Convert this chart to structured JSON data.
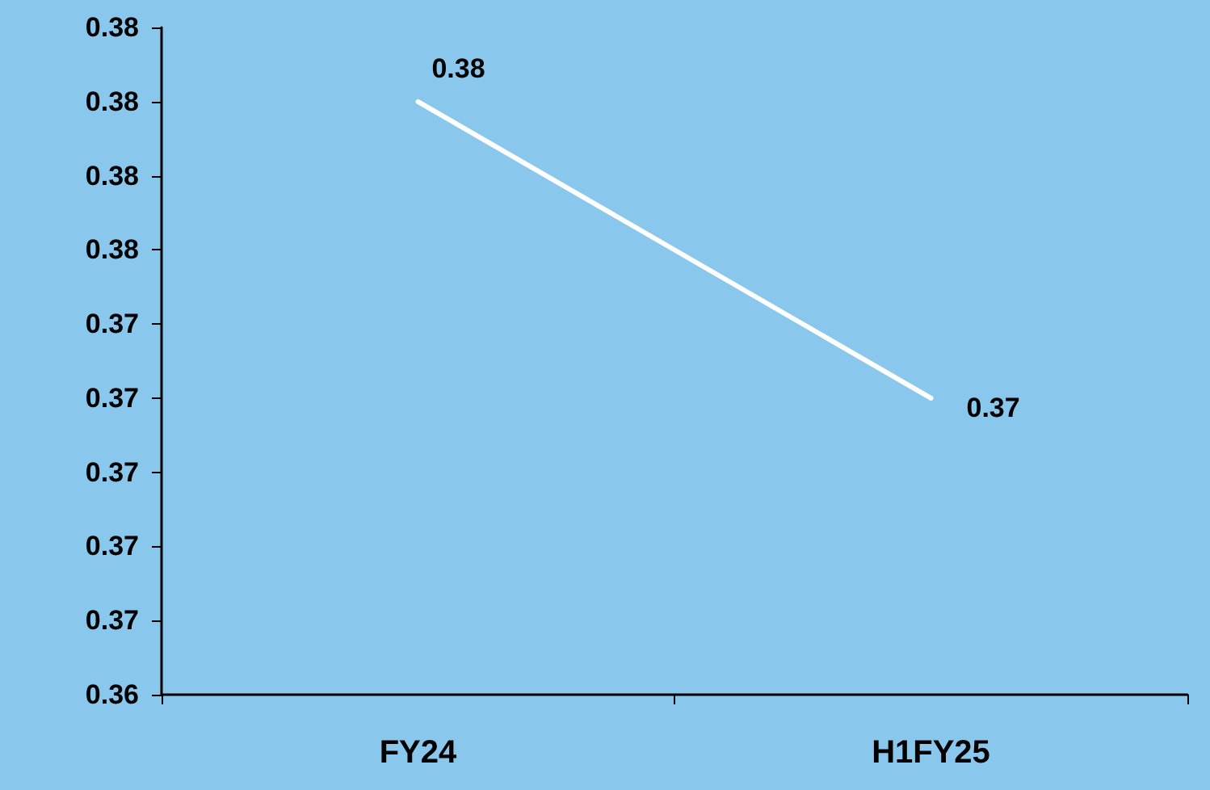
{
  "chart_data": {
    "type": "line",
    "categories": [
      "FY24",
      "H1FY25"
    ],
    "series": [
      {
        "color": "#ffffff",
        "values": [
          0.38,
          0.372
        ],
        "value_labels": [
          "0.38",
          "0.37"
        ]
      }
    ],
    "ylim": [
      0.364,
      0.382
    ],
    "yticks": [
      {
        "value": 0.364,
        "label": "0.36"
      },
      {
        "value": 0.366,
        "label": "0.37"
      },
      {
        "value": 0.368,
        "label": "0.37"
      },
      {
        "value": 0.37,
        "label": "0.37"
      },
      {
        "value": 0.372,
        "label": "0.37"
      },
      {
        "value": 0.374,
        "label": "0.37"
      },
      {
        "value": 0.376,
        "label": "0.38"
      },
      {
        "value": 0.378,
        "label": "0.38"
      },
      {
        "value": 0.38,
        "label": "0.38"
      },
      {
        "value": 0.382,
        "label": "0.38"
      }
    ],
    "grid": false,
    "marker": "none",
    "line_style": "solid"
  }
}
